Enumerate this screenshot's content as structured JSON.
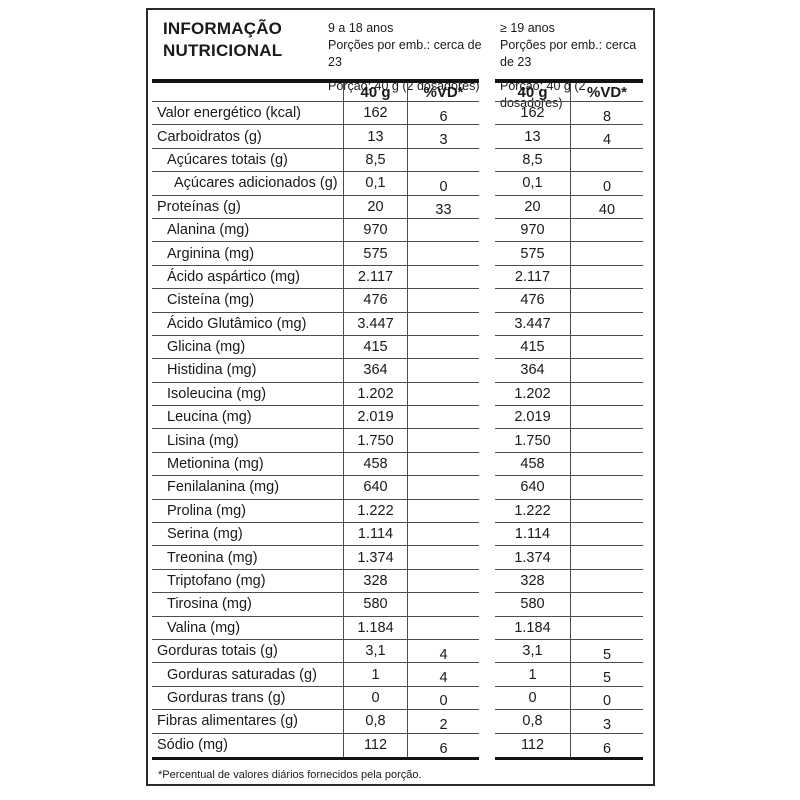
{
  "label": {
    "title": "INFORMAÇÃO\nNUTRICIONAL",
    "groups": [
      {
        "age": "9 a 18 anos",
        "servings": "Porções por emb.: cerca de 23",
        "portion": "Porção: 40 g (2 dosadores)"
      },
      {
        "age": "≥ 19 anos",
        "servings": "Porções por emb.: cerca de 23",
        "portion": "Porção: 40 g (2 dosadores)"
      }
    ],
    "col_headers": {
      "amount": "40 g",
      "vd": "%VD*"
    },
    "rows": [
      {
        "name": "Valor energético (kcal)",
        "indent": 0,
        "g1": "162",
        "vd1": "6",
        "g2": "162",
        "vd2": "8"
      },
      {
        "name": "Carboidratos (g)",
        "indent": 0,
        "g1": "13",
        "vd1": "3",
        "g2": "13",
        "vd2": "4"
      },
      {
        "name": "Açúcares totais (g)",
        "indent": 1,
        "g1": "8,5",
        "vd1": "",
        "g2": "8,5",
        "vd2": ""
      },
      {
        "name": "Açúcares adicionados (g)",
        "indent": 2,
        "g1": "0,1",
        "vd1": "0",
        "g2": "0,1",
        "vd2": "0"
      },
      {
        "name": "Proteínas (g)",
        "indent": 0,
        "g1": "20",
        "vd1": "33",
        "g2": "20",
        "vd2": "40"
      },
      {
        "name": "Alanina (mg)",
        "indent": 1,
        "g1": "970",
        "vd1": "",
        "g2": "970",
        "vd2": ""
      },
      {
        "name": "Arginina (mg)",
        "indent": 1,
        "g1": "575",
        "vd1": "",
        "g2": "575",
        "vd2": ""
      },
      {
        "name": "Ácido aspártico (mg)",
        "indent": 1,
        "g1": "2.117",
        "vd1": "",
        "g2": "2.117",
        "vd2": ""
      },
      {
        "name": "Cisteína (mg)",
        "indent": 1,
        "g1": "476",
        "vd1": "",
        "g2": "476",
        "vd2": ""
      },
      {
        "name": "Ácido Glutâmico (mg)",
        "indent": 1,
        "g1": "3.447",
        "vd1": "",
        "g2": "3.447",
        "vd2": ""
      },
      {
        "name": "Glicina (mg)",
        "indent": 1,
        "g1": "415",
        "vd1": "",
        "g2": "415",
        "vd2": ""
      },
      {
        "name": "Histidina (mg)",
        "indent": 1,
        "g1": "364",
        "vd1": "",
        "g2": "364",
        "vd2": ""
      },
      {
        "name": "Isoleucina (mg)",
        "indent": 1,
        "g1": "1.202",
        "vd1": "",
        "g2": "1.202",
        "vd2": ""
      },
      {
        "name": "Leucina (mg)",
        "indent": 1,
        "g1": "2.019",
        "vd1": "",
        "g2": "2.019",
        "vd2": ""
      },
      {
        "name": "Lisina (mg)",
        "indent": 1,
        "g1": "1.750",
        "vd1": "",
        "g2": "1.750",
        "vd2": ""
      },
      {
        "name": "Metionina (mg)",
        "indent": 1,
        "g1": "458",
        "vd1": "",
        "g2": "458",
        "vd2": ""
      },
      {
        "name": "Fenilalanina (mg)",
        "indent": 1,
        "g1": "640",
        "vd1": "",
        "g2": "640",
        "vd2": ""
      },
      {
        "name": "Prolina (mg)",
        "indent": 1,
        "g1": "1.222",
        "vd1": "",
        "g2": "1.222",
        "vd2": ""
      },
      {
        "name": "Serina (mg)",
        "indent": 1,
        "g1": "1.114",
        "vd1": "",
        "g2": "1.114",
        "vd2": ""
      },
      {
        "name": "Treonina (mg)",
        "indent": 1,
        "g1": "1.374",
        "vd1": "",
        "g2": "1.374",
        "vd2": ""
      },
      {
        "name": "Triptofano (mg)",
        "indent": 1,
        "g1": "328",
        "vd1": "",
        "g2": "328",
        "vd2": ""
      },
      {
        "name": "Tirosina (mg)",
        "indent": 1,
        "g1": "580",
        "vd1": "",
        "g2": "580",
        "vd2": ""
      },
      {
        "name": "Valina (mg)",
        "indent": 1,
        "g1": "1.184",
        "vd1": "",
        "g2": "1.184",
        "vd2": ""
      },
      {
        "name": "Gorduras totais (g)",
        "indent": 0,
        "g1": "3,1",
        "vd1": "4",
        "g2": "3,1",
        "vd2": "5"
      },
      {
        "name": "Gorduras saturadas (g)",
        "indent": 1,
        "g1": "1",
        "vd1": "4",
        "g2": "1",
        "vd2": "5"
      },
      {
        "name": "Gorduras trans (g)",
        "indent": 1,
        "g1": "0",
        "vd1": "0",
        "g2": "0",
        "vd2": "0"
      },
      {
        "name": "Fibras alimentares (g)",
        "indent": 0,
        "g1": "0,8",
        "vd1": "2",
        "g2": "0,8",
        "vd2": "3"
      },
      {
        "name": "Sódio (mg)",
        "indent": 0,
        "g1": "112",
        "vd1": "6",
        "g2": "112",
        "vd2": "6"
      }
    ],
    "footnote": "*Percentual de valores diários fornecidos pela porção."
  },
  "colors": {
    "line_thin": "#4d4d4d",
    "line_thick": "#141414",
    "text": "#1a1a1a",
    "background": "#ffffff"
  }
}
